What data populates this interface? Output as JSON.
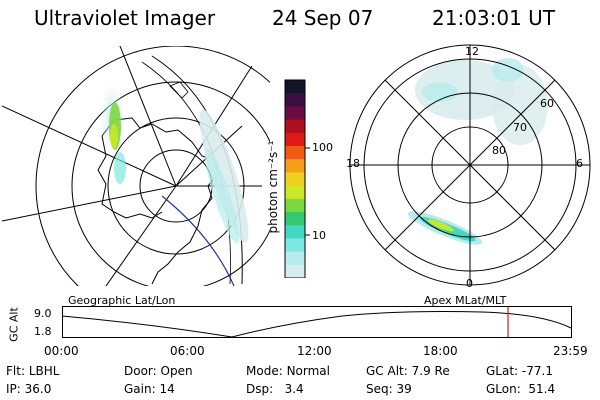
{
  "header": {
    "instrument": "Ultraviolet Imager",
    "date": "24 Sep 07",
    "time": "21:03:01 UT"
  },
  "colorbar": {
    "unit_label": "photon cm⁻²s⁻¹",
    "ticks": [
      "100",
      "10"
    ],
    "colors": [
      "#141428",
      "#3a1040",
      "#6a0c40",
      "#b0101c",
      "#e01818",
      "#f05a14",
      "#f4a01a",
      "#f0d020",
      "#c8e828",
      "#7cd840",
      "#34c870",
      "#44d8c4",
      "#7ee8e0",
      "#b8ecec",
      "#d8ecec"
    ]
  },
  "left_panel": {
    "caption": "Geographic Lat/Lon"
  },
  "right_panel": {
    "caption": "Apex MLat/MLT",
    "mlt_labels": {
      "top": "12",
      "left": "18",
      "right": "6",
      "bottom": "0"
    },
    "lat_labels": [
      "60",
      "70",
      "80"
    ]
  },
  "altitude_plot": {
    "ylabel": "GC Alt",
    "yticks": [
      "9.0",
      "1.8"
    ],
    "xticks": [
      "00:00",
      "06:00",
      "12:00",
      "18:00",
      "23:59"
    ],
    "marker_color": "#cc2020"
  },
  "status": {
    "row1": [
      {
        "key": "Flt:",
        "val": "LBHL"
      },
      {
        "key": "Door:",
        "val": "Open"
      },
      {
        "key": "Mode:",
        "val": "Normal"
      },
      {
        "key": "GC Alt:",
        "val": "7.9 Re"
      },
      {
        "key": "GLat:",
        "val": "-77.1"
      }
    ],
    "row2": [
      {
        "key": "IP:",
        "val": "36.0"
      },
      {
        "key": "Gain:",
        "val": "14"
      },
      {
        "key": "Dsp:",
        "val": "3.4"
      },
      {
        "key": "Seq:",
        "val": "39"
      },
      {
        "key": "GLon:",
        "val": "51.4"
      }
    ]
  }
}
